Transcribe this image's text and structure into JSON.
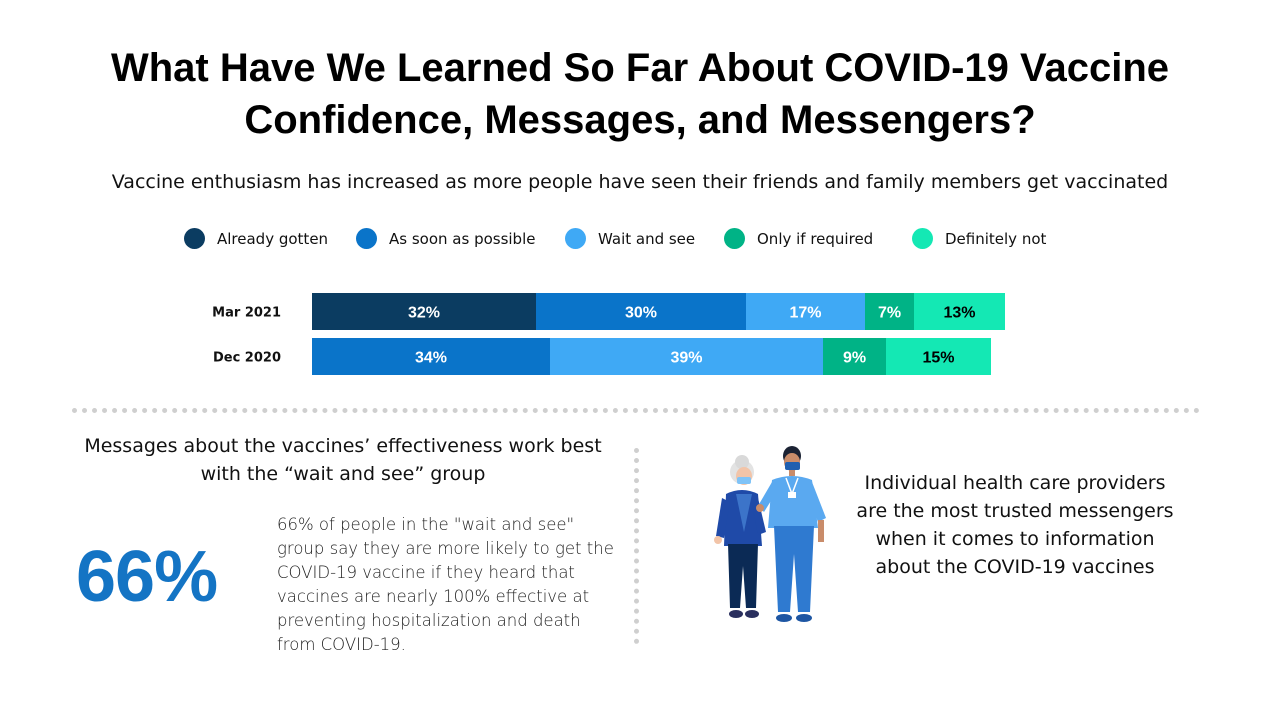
{
  "title_line1": "What Have We Learned So Far About COVID-19 Vaccine",
  "title_line2": "Confidence, Messages, and Messengers?",
  "subtitle": "Vaccine enthusiasm has increased as more people have seen their friends and family members get vaccinated",
  "legend": [
    {
      "label": "Already gotten",
      "color": "#0b3c61"
    },
    {
      "label": "As soon as possible",
      "color": "#0a74c9"
    },
    {
      "label": "Wait and see",
      "color": "#3fa9f5"
    },
    {
      "label": "Only if required",
      "color": "#00b386"
    },
    {
      "label": "Definitely not",
      "color": "#14e8b4"
    }
  ],
  "chart_data": {
    "type": "bar",
    "orientation": "horizontal",
    "stacked": true,
    "categories": [
      "Mar 2021",
      "Dec 2020"
    ],
    "series": [
      {
        "name": "Already gotten",
        "color": "#0b3c61",
        "values": [
          32,
          0
        ]
      },
      {
        "name": "As soon as possible",
        "color": "#0a74c9",
        "values": [
          30,
          34
        ]
      },
      {
        "name": "Wait and see",
        "color": "#3fa9f5",
        "values": [
          17,
          39
        ]
      },
      {
        "name": "Only if required",
        "color": "#00b386",
        "values": [
          7,
          9
        ]
      },
      {
        "name": "Definitely not",
        "color": "#14e8b4",
        "values": [
          13,
          15
        ]
      }
    ],
    "label_colors": [
      "#ffffff",
      "#ffffff",
      "#ffffff",
      "#ffffff",
      "#000000"
    ],
    "grid": false,
    "legend_placement": "top"
  },
  "messages": {
    "heading_line1": "Messages about the vaccines’ effectiveness work best",
    "heading_line2": "with the “wait and see” group",
    "big_stat": "66%",
    "stat_lines": [
      "66% of people in the \"wait and see\"",
      "group say they are more likely to get the",
      "COVID-19 vaccine if they heard that",
      "vaccines are nearly 100% effective at",
      "preventing hospitalization and death",
      "from COVID-19."
    ]
  },
  "messengers": {
    "lines": [
      "Individual health care providers",
      "are the most trusted messengers",
      "when it comes to information",
      "about the COVID-19 vaccines"
    ]
  }
}
